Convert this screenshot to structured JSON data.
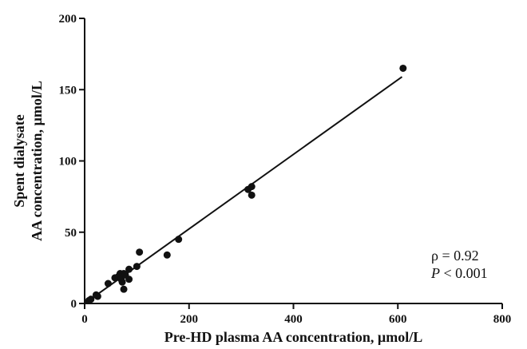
{
  "chart_data": {
    "type": "scatter",
    "title": "",
    "xlabel": "Pre-HD plasma AA concentration, µmol/L",
    "ylabel_lines": [
      "Spent dialysate",
      "AA concentration, µmol/L"
    ],
    "xlim": [
      0,
      800
    ],
    "ylim": [
      0,
      200
    ],
    "xticks": [
      0,
      200,
      400,
      600,
      800
    ],
    "yticks": [
      0,
      50,
      100,
      150,
      200
    ],
    "grid": false,
    "points": [
      {
        "x": 8,
        "y": 2
      },
      {
        "x": 12,
        "y": 3
      },
      {
        "x": 22,
        "y": 6
      },
      {
        "x": 25,
        "y": 5
      },
      {
        "x": 45,
        "y": 14
      },
      {
        "x": 58,
        "y": 18
      },
      {
        "x": 65,
        "y": 19
      },
      {
        "x": 68,
        "y": 21
      },
      {
        "x": 70,
        "y": 17
      },
      {
        "x": 72,
        "y": 15
      },
      {
        "x": 75,
        "y": 21
      },
      {
        "x": 78,
        "y": 20
      },
      {
        "x": 75,
        "y": 10
      },
      {
        "x": 85,
        "y": 24
      },
      {
        "x": 85,
        "y": 17
      },
      {
        "x": 100,
        "y": 26
      },
      {
        "x": 105,
        "y": 36
      },
      {
        "x": 158,
        "y": 34
      },
      {
        "x": 180,
        "y": 45
      },
      {
        "x": 313,
        "y": 80
      },
      {
        "x": 320,
        "y": 82
      },
      {
        "x": 320,
        "y": 76
      },
      {
        "x": 610,
        "y": 165
      }
    ],
    "fit_line": {
      "x": [
        0,
        608
      ],
      "y": [
        0,
        159
      ]
    },
    "annotations": {
      "rho": "ρ = 0.92",
      "p_label": "P",
      "p_value": " < 0.001"
    }
  }
}
